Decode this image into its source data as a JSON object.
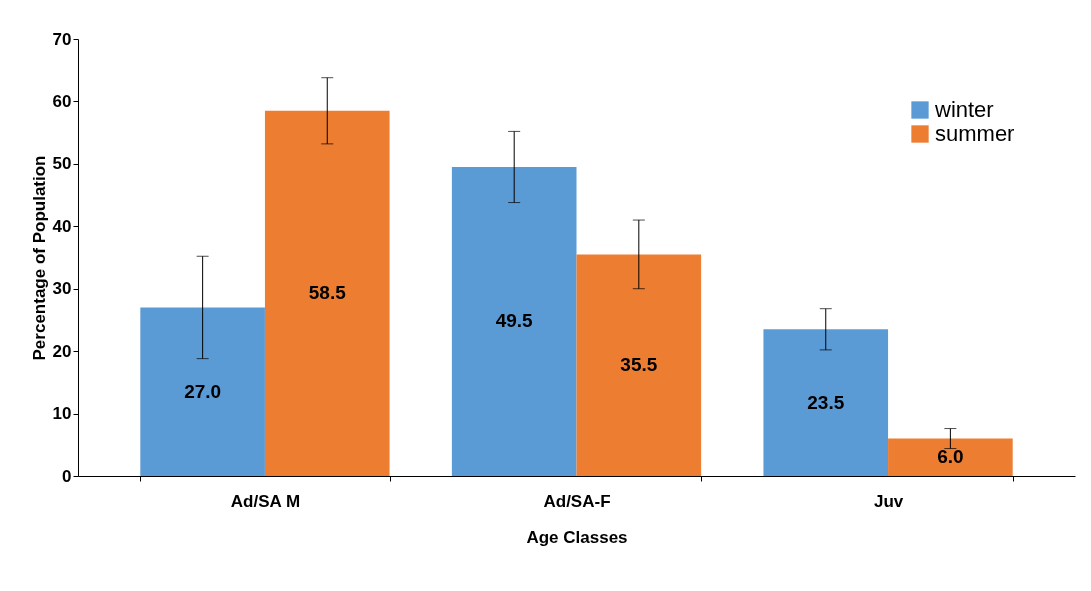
{
  "chart_data": {
    "type": "bar",
    "xlabel": "Age Classes",
    "ylabel": "Percentage of Population",
    "categories": [
      "Ad/SA M",
      "Ad/SA-F",
      "Juv"
    ],
    "series": [
      {
        "name": "winter",
        "color": "#5b9bd5",
        "values": [
          27.0,
          49.5,
          23.5
        ],
        "errors": [
          8.2,
          5.7,
          3.3
        ],
        "value_labels": [
          "27.0",
          "49.5",
          "23.5"
        ]
      },
      {
        "name": "summer",
        "color": "#ed7d31",
        "values": [
          58.5,
          35.5,
          6.0
        ],
        "errors": [
          5.3,
          5.5,
          1.6
        ],
        "value_labels": [
          "58.5",
          "35.5",
          "6.0"
        ]
      }
    ],
    "ylim": [
      0,
      70
    ],
    "yticks": [
      0,
      10,
      20,
      30,
      40,
      50,
      60,
      70
    ],
    "grid": false,
    "legend": "top right"
  }
}
